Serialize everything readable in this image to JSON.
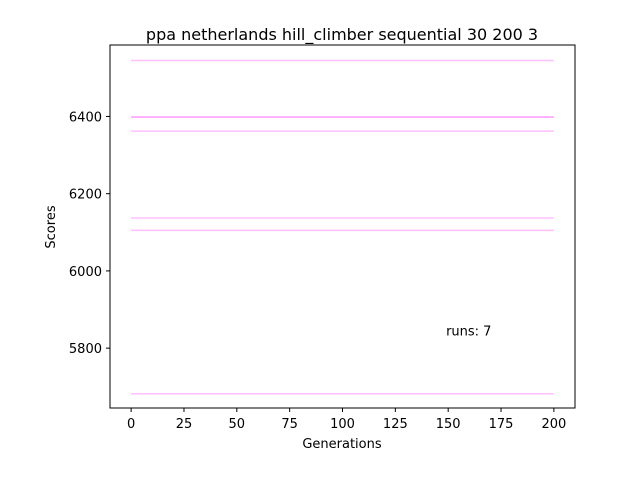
{
  "chart_data": {
    "type": "line",
    "title": "ppa netherlands hill_climber sequential 30 200 3",
    "xlabel": "Generations",
    "ylabel": "Scores",
    "xlim": [
      -10,
      210
    ],
    "ylim": [
      5645,
      6585
    ],
    "xticks": [
      0,
      25,
      50,
      75,
      100,
      125,
      150,
      175,
      200
    ],
    "yticks": [
      5800,
      6000,
      6200,
      6400
    ],
    "grid": false,
    "line_color": "#ff80ff",
    "line_opacity": 0.5,
    "series": [
      {
        "x": [
          0,
          200
        ],
        "y": [
          6545,
          6545
        ]
      },
      {
        "x": [
          0,
          200
        ],
        "y": [
          6399,
          6399
        ]
      },
      {
        "x": [
          0,
          200
        ],
        "y": [
          6398,
          6398
        ]
      },
      {
        "x": [
          0,
          200
        ],
        "y": [
          6362,
          6362
        ]
      },
      {
        "x": [
          0,
          200
        ],
        "y": [
          6137,
          6137
        ]
      },
      {
        "x": [
          0,
          200
        ],
        "y": [
          6105,
          6105
        ]
      },
      {
        "x": [
          0,
          200
        ],
        "y": [
          5682,
          5682
        ]
      }
    ],
    "annotations": [
      {
        "text": "runs: 7",
        "x": 149,
        "y": 5833
      }
    ]
  }
}
